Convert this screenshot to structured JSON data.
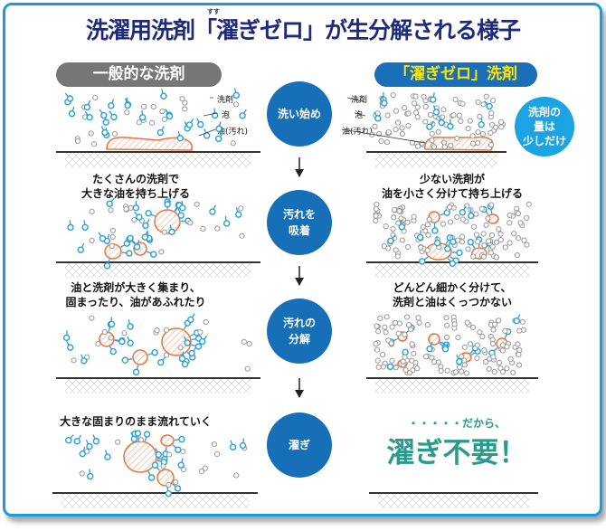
{
  "title": "洗濯用洗剤「濯ぎゼロ」が生分解される様子",
  "title_ruby": "すす",
  "left_header": "一般的な洗剤",
  "right_header": "「濯ぎゼロ」洗剤",
  "steps": [
    "洗い始め",
    "汚れを\n吸着",
    "汚れの\n分解",
    "濯ぎ"
  ],
  "left_labels": {
    "detergent": "洗剤",
    "foam": "泡",
    "oil": "油(汚れ)"
  },
  "right_labels": {
    "detergent": "洗剤",
    "foam": "泡",
    "oil": "油(汚れ)"
  },
  "callout": "洗剤の\n量は\n少しだけ",
  "left_captions": [
    "たくさんの洗剤で\n大きな油を持ち上げる",
    "油と洗剤が大きく集まり、\n固まったり、油があふれたり",
    "大きな固まりのまま流れていく"
  ],
  "right_captions": [
    "少ない洗剤が\n油を小さく分けて持ち上げる",
    "どんどん細かく分けて、\n洗剤と油はくっつかない"
  ],
  "conclusion_lead": "・・・・・だから、",
  "conclusion": "濯ぎ不要！",
  "colors": {
    "navy": "#1f2b7a",
    "step_blue": "#176fb8",
    "detergent_blue": "#2a9fd8",
    "oil_orange": "#e8743f",
    "green": "#2a9a8a",
    "yellow": "#ffe600"
  }
}
